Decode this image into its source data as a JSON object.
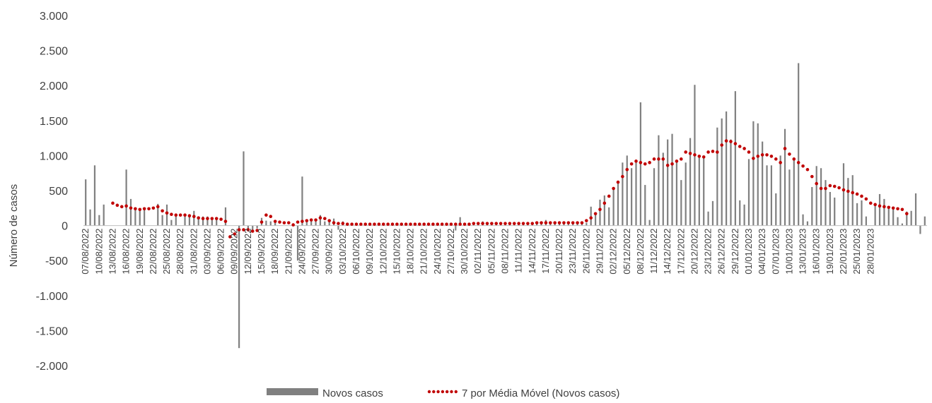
{
  "chart_data": {
    "type": "bar",
    "ylabel": "Número de casos",
    "xlabel": "",
    "ylim": [
      -2000,
      3000
    ],
    "yticks": [
      3000,
      2500,
      2000,
      1500,
      1000,
      500,
      0,
      -500,
      -1000,
      -1500,
      -2000
    ],
    "ytick_labels": [
      "3.000",
      "2.500",
      "2.000",
      "1.500",
      "1.000",
      "500",
      "0",
      "-500",
      "-1.000",
      "-1.500",
      "-2.000"
    ],
    "x_start": "2022-08-07",
    "x_end": "2023-01-28",
    "x_tick_labels": [
      "07/08/2022",
      "10/08/2022",
      "13/08/2022",
      "16/08/2022",
      "19/08/2022",
      "22/08/2022",
      "25/08/2022",
      "28/08/2022",
      "31/08/2022",
      "03/09/2022",
      "06/09/2022",
      "09/09/2022",
      "12/09/2022",
      "15/09/2022",
      "18/09/2022",
      "21/09/2022",
      "24/09/2022",
      "27/09/2022",
      "30/09/2022",
      "03/10/2022",
      "06/10/2022",
      "09/10/2022",
      "12/10/2022",
      "15/10/2022",
      "18/10/2022",
      "21/10/2022",
      "24/10/2022",
      "27/10/2022",
      "30/10/2022",
      "02/11/2022",
      "05/11/2022",
      "08/11/2022",
      "11/11/2022",
      "14/11/2022",
      "17/11/2022",
      "20/11/2022",
      "23/11/2022",
      "26/11/2022",
      "29/11/2022",
      "02/12/2022",
      "05/12/2022",
      "08/12/2022",
      "11/12/2022",
      "14/12/2022",
      "17/12/2022",
      "20/12/2022",
      "23/12/2022",
      "26/12/2022",
      "29/12/2022",
      "01/01/2023",
      "04/01/2023",
      "07/01/2023",
      "10/01/2023",
      "13/01/2023",
      "16/01/2023",
      "19/01/2023",
      "22/01/2023",
      "25/01/2023",
      "28/01/2023"
    ],
    "grid": false,
    "legend_position": "bottom",
    "series": [
      {
        "name": "Novos casos",
        "type": "bar",
        "color": "#808080",
        "values": [
          660,
          230,
          860,
          150,
          300,
          0,
          0,
          0,
          0,
          800,
          380,
          240,
          230,
          260,
          0,
          0,
          310,
          150,
          300,
          80,
          150,
          0,
          150,
          160,
          210,
          100,
          130,
          130,
          80,
          80,
          0,
          260,
          0,
          0,
          -1750,
          1060,
          -50,
          -60,
          -40,
          110,
          70,
          60,
          70,
          0,
          0,
          0,
          30,
          -500,
          700,
          90,
          60,
          60,
          150,
          60,
          90,
          100,
          -60,
          60,
          40,
          30,
          30,
          30,
          20,
          20,
          20,
          20,
          20,
          20,
          20,
          30,
          20,
          20,
          30,
          20,
          20,
          20,
          20,
          20,
          20,
          20,
          20,
          30,
          -70,
          120,
          30,
          30,
          30,
          30,
          60,
          40,
          20,
          30,
          40,
          20,
          30,
          40,
          40,
          30,
          20,
          20,
          30,
          30,
          80,
          40,
          50,
          40,
          60,
          20,
          40,
          40,
          40,
          40,
          270,
          190,
          370,
          430,
          260,
          540,
          640,
          900,
          1000,
          820,
          900,
          1760,
          580,
          80,
          820,
          1290,
          1040,
          1230,
          1310,
          900,
          650,
          900,
          1250,
          2010,
          1000,
          1000,
          200,
          350,
          1400,
          1530,
          1630,
          1230,
          1920,
          360,
          300,
          950,
          1490,
          1460,
          1200,
          860,
          860,
          460,
          1000,
          1380,
          800,
          960,
          2320,
          160,
          60,
          550,
          850,
          820,
          650,
          480,
          400,
          0,
          890,
          680,
          720,
          320,
          360,
          130,
          0,
          300,
          450,
          380,
          260,
          240,
          120,
          30,
          200,
          210,
          460,
          -120,
          130
        ]
      },
      {
        "name": "7 por Média Móvel (Novos casos)",
        "type": "line",
        "color": "#c00000",
        "values": [
          null,
          null,
          null,
          null,
          null,
          null,
          320,
          290,
          270,
          280,
          250,
          240,
          230,
          240,
          240,
          250,
          270,
          210,
          180,
          160,
          150,
          150,
          150,
          140,
          130,
          110,
          100,
          100,
          100,
          100,
          90,
          60,
          -160,
          -120,
          -60,
          -60,
          -60,
          -80,
          -70,
          50,
          150,
          130,
          60,
          50,
          40,
          40,
          10,
          50,
          60,
          70,
          80,
          80,
          110,
          100,
          70,
          40,
          30,
          30,
          20,
          20,
          20,
          20,
          20,
          20,
          20,
          20,
          20,
          20,
          20,
          20,
          20,
          20,
          20,
          20,
          20,
          20,
          20,
          20,
          20,
          20,
          20,
          20,
          20,
          20,
          20,
          20,
          30,
          30,
          30,
          30,
          30,
          30,
          30,
          30,
          30,
          30,
          30,
          30,
          30,
          30,
          40,
          40,
          40,
          40,
          40,
          40,
          40,
          40,
          40,
          40,
          40,
          70,
          110,
          170,
          230,
          320,
          420,
          530,
          620,
          700,
          800,
          880,
          920,
          900,
          880,
          900,
          950,
          950,
          950,
          860,
          880,
          920,
          950,
          1050,
          1030,
          1010,
          990,
          980,
          1050,
          1060,
          1050,
          1150,
          1210,
          1200,
          1170,
          1130,
          1100,
          1050,
          960,
          990,
          1010,
          1010,
          990,
          950,
          900,
          1100,
          1020,
          950,
          900,
          850,
          800,
          700,
          600,
          530,
          530,
          570,
          560,
          540,
          510,
          490,
          470,
          450,
          420,
          380,
          320,
          300,
          280,
          270,
          260,
          250,
          240,
          230,
          170
        ]
      }
    ]
  }
}
